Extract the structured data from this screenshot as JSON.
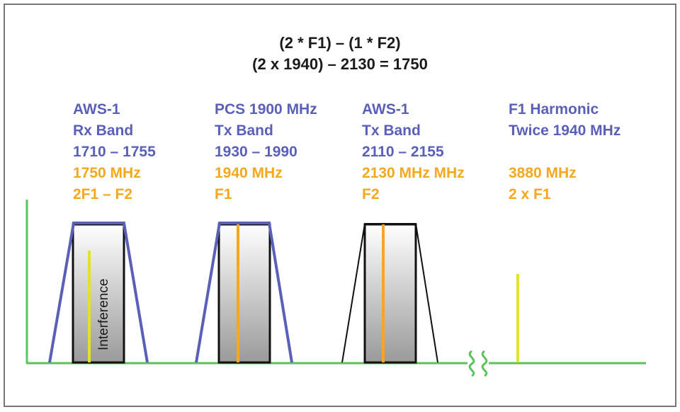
{
  "equation": {
    "line1": "(2 * F1) – (1 * F2)",
    "line2": "(2 x 1940) – 2130 = 1750"
  },
  "bands": [
    {
      "line1": "AWS-1",
      "line2": "Rx Band",
      "line3": "1710 – 1755",
      "freq": "1750 MHz",
      "tag": "2F1 – F2"
    },
    {
      "line1": "PCS 1900 MHz",
      "line2": "Tx Band",
      "line3": "1930 – 1990",
      "freq": "1940 MHz",
      "tag": "F1"
    },
    {
      "line1": "AWS-1",
      "line2": "Tx Band",
      "line3": "2110 – 2155",
      "freq": "2130 MHz MHz",
      "tag": "F2"
    },
    {
      "line1": "F1 Harmonic",
      "line2": "Twice 1940 MHz",
      "freq": "3880 MHz",
      "tag": "2 x F1"
    }
  ],
  "interference_label": "Interference",
  "colors": {
    "axis": "#5cc35c",
    "band_outline_blue": "#5a5fb8",
    "band_outline_black": "#111111",
    "signal_orange": "#f4a81d",
    "signal_yellow": "#e2e22c",
    "label_blue": "#5a5fb8",
    "label_orange": "#f4a81d"
  }
}
